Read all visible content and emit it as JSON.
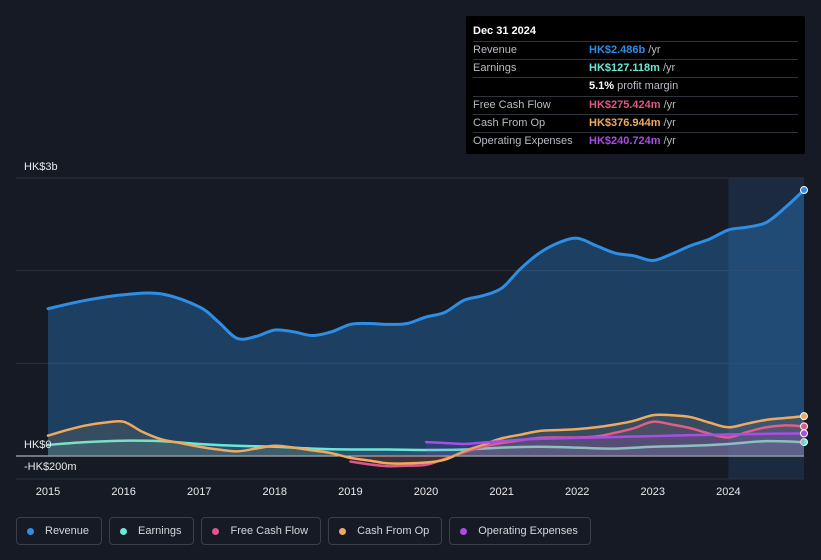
{
  "tooltip": {
    "date": "Dec 31 2024",
    "rows": [
      {
        "label": "Revenue",
        "value": "HK$2.486b",
        "unit": "/yr",
        "color": "#2e8ee6"
      },
      {
        "label": "Earnings",
        "value": "HK$127.118m",
        "unit": "/yr",
        "color": "#6ee6d6"
      },
      {
        "label": "",
        "value": "5.1%",
        "unit": "profit margin",
        "color": "#ffffff"
      },
      {
        "label": "Free Cash Flow",
        "value": "HK$275.424m",
        "unit": "/yr",
        "color": "#e0558a"
      },
      {
        "label": "Cash From Op",
        "value": "HK$376.944m",
        "unit": "/yr",
        "color": "#eeaa5e"
      },
      {
        "label": "Operating Expenses",
        "value": "HK$240.724m",
        "unit": "/yr",
        "color": "#a64ee6"
      }
    ]
  },
  "legend": [
    {
      "label": "Revenue",
      "color": "#2e8ee6"
    },
    {
      "label": "Earnings",
      "color": "#6ee6d6"
    },
    {
      "label": "Free Cash Flow",
      "color": "#e0558a"
    },
    {
      "label": "Cash From Op",
      "color": "#eeaa5e"
    },
    {
      "label": "Operating Expenses",
      "color": "#a64ee6"
    }
  ],
  "chart_data": {
    "type": "line",
    "title": "",
    "xlabel": "",
    "ylabel": "",
    "currency": "HK$",
    "ylim": [
      -200,
      3000
    ],
    "y_tick_labels": [
      {
        "value": 3000,
        "label": "HK$3b"
      },
      {
        "value": 0,
        "label": "HK$0"
      },
      {
        "value": -200,
        "label": "-HK$200m"
      }
    ],
    "x_ticks": [
      2015,
      2016,
      2017,
      2018,
      2019,
      2020,
      2021,
      2022,
      2023,
      2024
    ],
    "x_range": [
      2015,
      2025
    ],
    "highlight_from": 2024,
    "series": [
      {
        "name": "Revenue",
        "color": "#2e8ee6",
        "area": true,
        "x": [
          2015.0,
          2015.5,
          2016.0,
          2016.5,
          2017.0,
          2017.25,
          2017.5,
          2017.75,
          2018.0,
          2018.25,
          2018.5,
          2018.75,
          2019.0,
          2019.25,
          2019.5,
          2019.75,
          2020.0,
          2020.25,
          2020.5,
          2020.75,
          2021.0,
          2021.25,
          2021.5,
          2021.75,
          2022.0,
          2022.25,
          2022.5,
          2022.75,
          2023.0,
          2023.25,
          2023.5,
          2023.75,
          2024.0,
          2024.25,
          2024.5,
          2024.75,
          2025.0
        ],
        "values": [
          1590,
          1680,
          1740,
          1750,
          1610,
          1450,
          1270,
          1290,
          1360,
          1340,
          1300,
          1340,
          1420,
          1430,
          1420,
          1430,
          1500,
          1550,
          1680,
          1730,
          1810,
          2020,
          2190,
          2300,
          2350,
          2270,
          2190,
          2160,
          2110,
          2180,
          2270,
          2340,
          2440,
          2470,
          2520,
          2680,
          2870
        ]
      },
      {
        "name": "Earnings",
        "color": "#6ee6d6",
        "x": [
          2015.0,
          2015.5,
          2016.0,
          2016.5,
          2017.0,
          2017.5,
          2018.0,
          2018.5,
          2019.0,
          2019.5,
          2020.0,
          2020.5,
          2021.0,
          2021.5,
          2022.0,
          2022.5,
          2023.0,
          2023.5,
          2024.0,
          2024.5,
          2025.0
        ],
        "values": [
          120,
          150,
          165,
          160,
          130,
          110,
          100,
          80,
          70,
          70,
          65,
          70,
          90,
          100,
          90,
          80,
          100,
          110,
          130,
          160,
          150
        ]
      },
      {
        "name": "Free Cash Flow",
        "color": "#e0558a",
        "x": [
          2019.0,
          2019.25,
          2019.5,
          2019.75,
          2020.0,
          2020.25,
          2020.5,
          2020.75,
          2021.0,
          2021.25,
          2021.5,
          2021.75,
          2022.0,
          2022.25,
          2022.5,
          2022.75,
          2023.0,
          2023.25,
          2023.5,
          2023.75,
          2024.0,
          2024.25,
          2024.5,
          2024.75,
          2025.0
        ],
        "values": [
          -60,
          -90,
          -110,
          -105,
          -95,
          -30,
          40,
          100,
          140,
          170,
          195,
          200,
          200,
          210,
          250,
          300,
          370,
          340,
          300,
          240,
          200,
          260,
          310,
          330,
          320
        ]
      },
      {
        "name": "Cash From Op",
        "color": "#eeaa5e",
        "x": [
          2015.0,
          2015.25,
          2015.5,
          2015.75,
          2016.0,
          2016.25,
          2016.5,
          2016.75,
          2017.0,
          2017.25,
          2017.5,
          2017.75,
          2018.0,
          2018.25,
          2018.5,
          2018.75,
          2019.0,
          2019.25,
          2019.5,
          2019.75,
          2020.0,
          2020.25,
          2020.5,
          2020.75,
          2021.0,
          2021.25,
          2021.5,
          2021.75,
          2022.0,
          2022.25,
          2022.5,
          2022.75,
          2023.0,
          2023.25,
          2023.5,
          2023.75,
          2024.0,
          2024.25,
          2024.5,
          2024.75,
          2025.0
        ],
        "values": [
          220,
          280,
          330,
          360,
          370,
          260,
          180,
          140,
          100,
          70,
          50,
          80,
          110,
          90,
          60,
          30,
          -20,
          -50,
          -80,
          -80,
          -70,
          -40,
          50,
          120,
          190,
          230,
          270,
          280,
          290,
          310,
          340,
          380,
          440,
          440,
          420,
          360,
          310,
          350,
          390,
          410,
          430
        ]
      },
      {
        "name": "Operating Expenses",
        "color": "#a64ee6",
        "x": [
          2020.0,
          2020.25,
          2020.5,
          2020.75,
          2021.0,
          2021.25,
          2021.5,
          2021.75,
          2022.0,
          2022.25,
          2022.5,
          2022.75,
          2023.0,
          2023.25,
          2023.5,
          2023.75,
          2024.0,
          2024.25,
          2024.5,
          2024.75,
          2025.0
        ],
        "values": [
          150,
          140,
          130,
          145,
          160,
          175,
          185,
          190,
          195,
          200,
          205,
          210,
          215,
          220,
          225,
          228,
          232,
          236,
          240,
          242,
          244
        ]
      }
    ]
  }
}
